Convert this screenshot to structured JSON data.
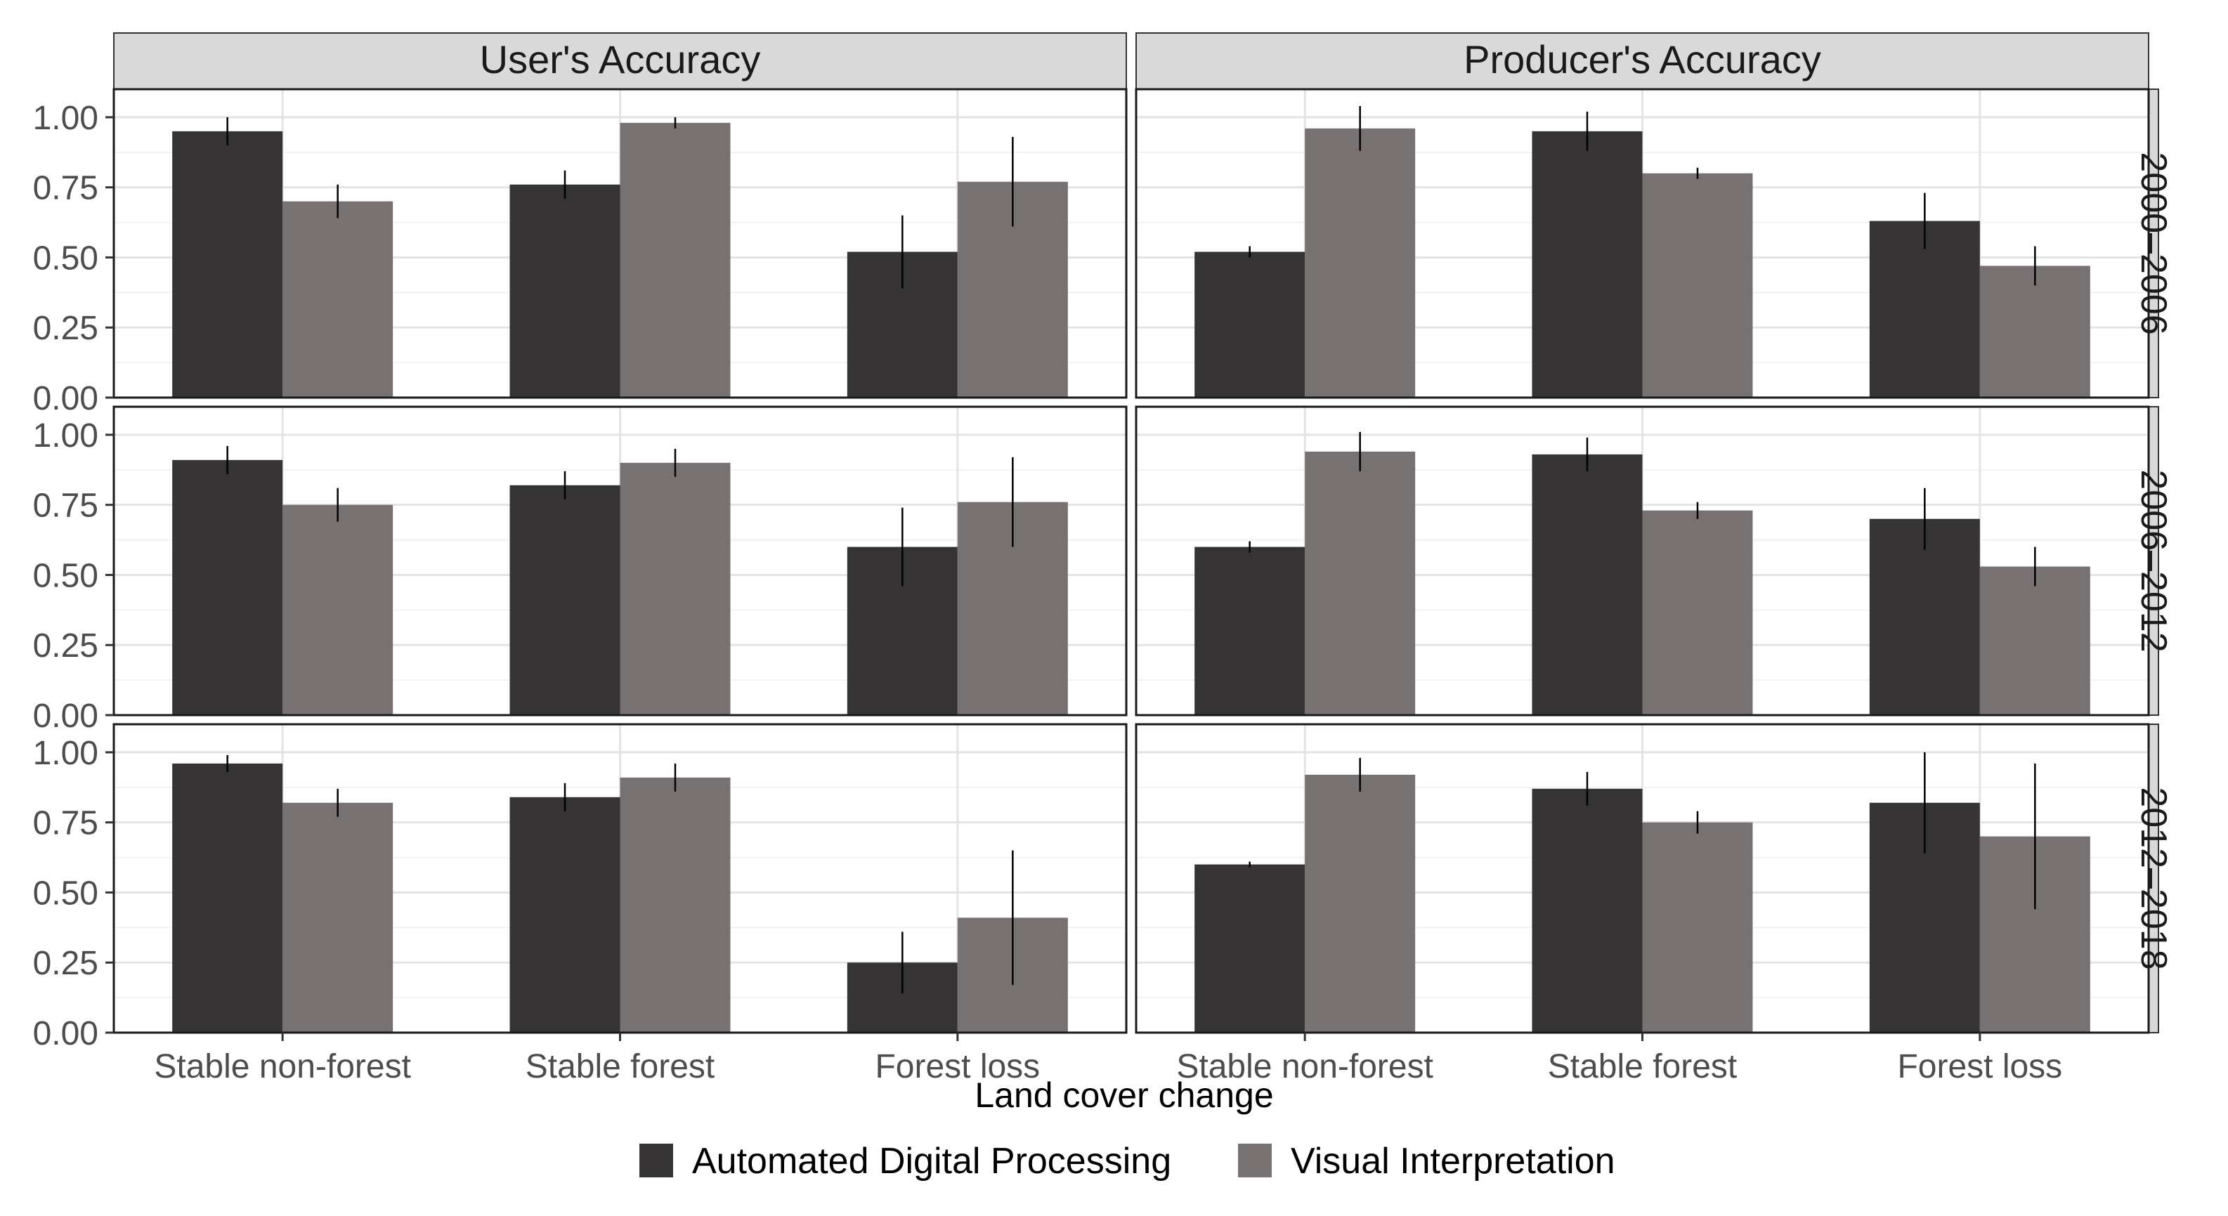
{
  "chart_data": {
    "type": "bar",
    "facets": {
      "columns": [
        "User's Accuracy",
        "Producer's Accuracy"
      ],
      "rows": [
        "2000–2006",
        "2006–2012",
        "2012–2018"
      ]
    },
    "categories": [
      "Stable non-forest",
      "Stable forest",
      "Forest loss"
    ],
    "series_names": [
      "Automated Digital Processing",
      "Visual Interpretation"
    ],
    "colors": {
      "Automated Digital Processing": "#353334",
      "Visual Interpretation": "#777271"
    },
    "xlabel": "Land cover change",
    "ylabel": "",
    "ylim": [
      0,
      1.1
    ],
    "yticks": [
      "0.00",
      "0.25",
      "0.50",
      "0.75",
      "1.00"
    ],
    "panels": [
      {
        "column": "User's Accuracy",
        "row": "2000–2006",
        "series": [
          {
            "name": "Automated Digital Processing",
            "values": [
              0.95,
              0.76,
              0.52
            ],
            "errors": [
              0.05,
              0.05,
              0.13
            ]
          },
          {
            "name": "Visual Interpretation",
            "values": [
              0.7,
              0.98,
              0.77
            ],
            "errors": [
              0.06,
              0.02,
              0.16
            ]
          }
        ]
      },
      {
        "column": "Producer's Accuracy",
        "row": "2000–2006",
        "series": [
          {
            "name": "Automated Digital Processing",
            "values": [
              0.52,
              0.95,
              0.63
            ],
            "errors": [
              0.02,
              0.07,
              0.1
            ]
          },
          {
            "name": "Visual Interpretation",
            "values": [
              0.96,
              0.8,
              0.47
            ],
            "errors": [
              0.08,
              0.02,
              0.07
            ]
          }
        ]
      },
      {
        "column": "User's Accuracy",
        "row": "2006–2012",
        "series": [
          {
            "name": "Automated Digital Processing",
            "values": [
              0.91,
              0.82,
              0.6
            ],
            "errors": [
              0.05,
              0.05,
              0.14
            ]
          },
          {
            "name": "Visual Interpretation",
            "values": [
              0.75,
              0.9,
              0.76
            ],
            "errors": [
              0.06,
              0.05,
              0.16
            ]
          }
        ]
      },
      {
        "column": "Producer's Accuracy",
        "row": "2006–2012",
        "series": [
          {
            "name": "Automated Digital Processing",
            "values": [
              0.6,
              0.93,
              0.7
            ],
            "errors": [
              0.02,
              0.06,
              0.11
            ]
          },
          {
            "name": "Visual Interpretation",
            "values": [
              0.94,
              0.73,
              0.53
            ],
            "errors": [
              0.07,
              0.03,
              0.07
            ]
          }
        ]
      },
      {
        "column": "User's Accuracy",
        "row": "2012–2018",
        "series": [
          {
            "name": "Automated Digital Processing",
            "values": [
              0.96,
              0.84,
              0.25
            ],
            "errors": [
              0.03,
              0.05,
              0.11
            ]
          },
          {
            "name": "Visual Interpretation",
            "values": [
              0.82,
              0.91,
              0.41
            ],
            "errors": [
              0.05,
              0.05,
              0.24
            ]
          }
        ]
      },
      {
        "column": "Producer's Accuracy",
        "row": "2012–2018",
        "series": [
          {
            "name": "Automated Digital Processing",
            "values": [
              0.6,
              0.87,
              0.82
            ],
            "errors": [
              0.01,
              0.06,
              0.18
            ]
          },
          {
            "name": "Visual Interpretation",
            "values": [
              0.92,
              0.75,
              0.7
            ],
            "errors": [
              0.06,
              0.04,
              0.26
            ]
          }
        ]
      }
    ],
    "legend_position": "bottom"
  }
}
